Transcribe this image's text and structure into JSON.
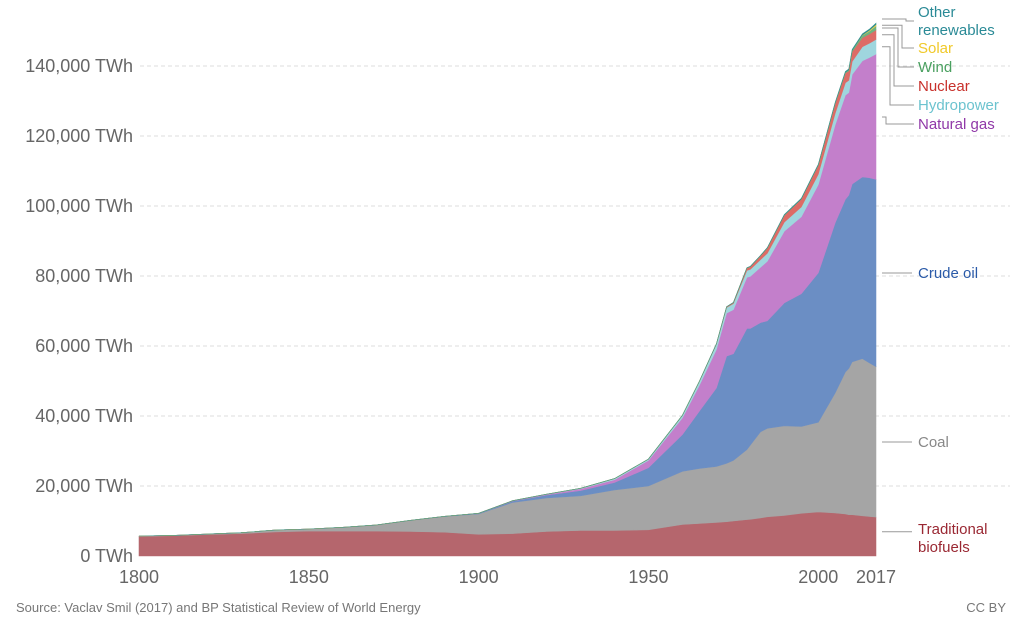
{
  "chart_data": {
    "type": "area",
    "stacked": true,
    "title": "",
    "xlabel": "",
    "ylabel": "",
    "ylim": [
      0,
      150000
    ],
    "xlim": [
      1800,
      2017
    ],
    "y_unit": "TWh",
    "grid": true,
    "legend_placement": "right (inline labels)",
    "yticks": [
      {
        "value": 0,
        "label": "0 TWh"
      },
      {
        "value": 20000,
        "label": "20,000 TWh"
      },
      {
        "value": 40000,
        "label": "40,000 TWh"
      },
      {
        "value": 60000,
        "label": "60,000 TWh"
      },
      {
        "value": 80000,
        "label": "80,000 TWh"
      },
      {
        "value": 100000,
        "label": "100,000 TWh"
      },
      {
        "value": 120000,
        "label": "120,000 TWh"
      },
      {
        "value": 140000,
        "label": "140,000 TWh"
      }
    ],
    "xticks": [
      {
        "value": 1800,
        "label": "1800"
      },
      {
        "value": 1850,
        "label": "1850"
      },
      {
        "value": 1900,
        "label": "1900"
      },
      {
        "value": 1950,
        "label": "1950"
      },
      {
        "value": 2000,
        "label": "2000"
      },
      {
        "value": 2017,
        "label": "2017"
      }
    ],
    "x": [
      1800,
      1810,
      1820,
      1830,
      1840,
      1850,
      1860,
      1870,
      1880,
      1890,
      1900,
      1910,
      1920,
      1930,
      1940,
      1950,
      1960,
      1965,
      1970,
      1973,
      1975,
      1979,
      1980,
      1983,
      1985,
      1990,
      1995,
      2000,
      2005,
      2008,
      2009,
      2010,
      2013,
      2015,
      2017
    ],
    "series": [
      {
        "name": "Traditional biofuels",
        "color": "#b5666d",
        "label_color": "#9a2833",
        "values": [
          5600,
          5800,
          6100,
          6400,
          6900,
          7100,
          7100,
          7100,
          7000,
          6800,
          6200,
          6400,
          7000,
          7300,
          7300,
          7500,
          9000,
          9300,
          9600,
          9800,
          10000,
          10400,
          10500,
          10900,
          11200,
          11600,
          12200,
          12600,
          12300,
          12000,
          11800,
          11800,
          11500,
          11300,
          11100
        ]
      },
      {
        "name": "Coal",
        "color": "#a5a5a5",
        "label_color": "#888888",
        "values": [
          100,
          100,
          150,
          250,
          500,
          600,
          1100,
          1800,
          3200,
          4500,
          5800,
          8900,
          9600,
          9900,
          11600,
          12500,
          15200,
          15700,
          16000,
          16700,
          17300,
          20000,
          21200,
          24600,
          25300,
          25600,
          24800,
          25600,
          34300,
          40600,
          41800,
          43700,
          44900,
          43900,
          43000
        ]
      },
      {
        "name": "Crude oil",
        "color": "#6b8ec4",
        "label_color": "#2a5aa8",
        "values": [
          0,
          0,
          0,
          0,
          0,
          0,
          0,
          0,
          0,
          50,
          200,
          400,
          800,
          1500,
          2100,
          5200,
          10500,
          16400,
          22400,
          30600,
          30500,
          34600,
          33300,
          31200,
          30700,
          35100,
          37900,
          42700,
          48600,
          49300,
          49500,
          50800,
          51900,
          52900,
          53500
        ]
      },
      {
        "name": "Natural gas",
        "color": "#c37fcb",
        "label_color": "#9038a8",
        "values": [
          0,
          0,
          0,
          0,
          0,
          0,
          0,
          0,
          0,
          0,
          0,
          100,
          200,
          500,
          800,
          2100,
          4800,
          7400,
          11000,
          12300,
          12600,
          14600,
          14900,
          15800,
          17000,
          20500,
          22000,
          25200,
          28000,
          29800,
          29300,
          31300,
          33200,
          34300,
          35800
        ]
      },
      {
        "name": "Hydropower",
        "color": "#9fd6de",
        "label_color": "#6cc3cf",
        "values": [
          0,
          0,
          0,
          0,
          0,
          0,
          0,
          0,
          0,
          0,
          0,
          10,
          50,
          150,
          300,
          400,
          700,
          1100,
          1500,
          1600,
          1700,
          2000,
          2000,
          2200,
          2300,
          2600,
          2800,
          3000,
          3300,
          3500,
          3500,
          3700,
          4000,
          4100,
          4200
        ]
      },
      {
        "name": "Nuclear",
        "color": "#dd6b66",
        "label_color": "#c8302b",
        "values": [
          0,
          0,
          0,
          0,
          0,
          0,
          0,
          0,
          0,
          0,
          0,
          0,
          0,
          0,
          0,
          0,
          0,
          30,
          100,
          200,
          300,
          700,
          800,
          1100,
          1500,
          2000,
          2300,
          2600,
          2800,
          2800,
          2700,
          2800,
          2600,
          2600,
          2700
        ]
      },
      {
        "name": "Wind",
        "color": "#6fb37f",
        "label_color": "#4aa060",
        "values": [
          0,
          0,
          0,
          0,
          0,
          0,
          0,
          0,
          0,
          0,
          0,
          0,
          0,
          0,
          0,
          0,
          0,
          0,
          0,
          0,
          0,
          0,
          0,
          0,
          0,
          10,
          10,
          30,
          100,
          220,
          280,
          340,
          640,
          830,
          1130
        ]
      },
      {
        "name": "Solar",
        "color": "#f2cf4a",
        "label_color": "#f0c92a",
        "values": [
          0,
          0,
          0,
          0,
          0,
          0,
          0,
          0,
          0,
          0,
          0,
          0,
          0,
          0,
          0,
          0,
          0,
          0,
          0,
          0,
          0,
          0,
          0,
          0,
          0,
          0,
          0,
          0,
          0,
          10,
          20,
          30,
          130,
          250,
          440
        ]
      },
      {
        "name": "Other renewables",
        "color": "#2f8f8f",
        "label_color": "#2a8a96",
        "values": [
          0,
          0,
          0,
          0,
          0,
          0,
          0,
          0,
          0,
          0,
          0,
          0,
          0,
          0,
          0,
          0,
          0,
          10,
          30,
          40,
          50,
          60,
          70,
          80,
          100,
          140,
          170,
          190,
          220,
          240,
          250,
          270,
          300,
          320,
          350
        ]
      }
    ],
    "labels": [
      {
        "series": "Other renewables",
        "lines": [
          "Other",
          "renewables"
        ]
      },
      {
        "series": "Solar",
        "lines": [
          "Solar"
        ]
      },
      {
        "series": "Wind",
        "lines": [
          "Wind"
        ]
      },
      {
        "series": "Nuclear",
        "lines": [
          "Nuclear"
        ]
      },
      {
        "series": "Hydropower",
        "lines": [
          "Hydropower"
        ]
      },
      {
        "series": "Natural gas",
        "lines": [
          "Natural gas"
        ]
      },
      {
        "series": "Crude oil",
        "lines": [
          "Crude oil"
        ]
      },
      {
        "series": "Coal",
        "lines": [
          "Coal"
        ]
      },
      {
        "series": "Traditional biofuels",
        "lines": [
          "Traditional",
          "biofuels"
        ]
      }
    ],
    "source": "Source: Vaclav Smil (2017) and BP Statistical Review of World Energy",
    "license": "CC BY"
  }
}
